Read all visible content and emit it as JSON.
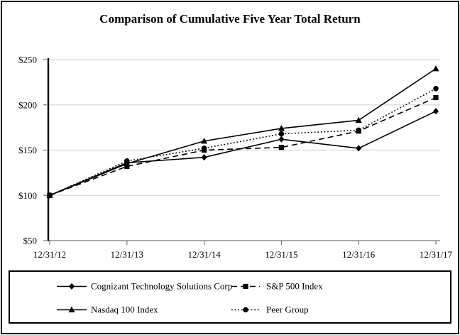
{
  "title": "Comparison of Cumulative Five Year Total Return",
  "chart_data": {
    "type": "line",
    "title": "Comparison of Cumulative Five Year Total Return",
    "x_labels": [
      "12/31/12",
      "12/31/13",
      "12/31/14",
      "12/31/15",
      "12/31/16",
      "12/31/17"
    ],
    "ylim": [
      50,
      250
    ],
    "y_ticks": [
      50,
      100,
      150,
      200,
      250
    ],
    "y_tick_labels": [
      "$50",
      "$100",
      "$150",
      "$200",
      "$250"
    ],
    "grid": true,
    "legend_position": "bottom-box",
    "colors": {
      "series": "#000000",
      "grid": "#d9d9d9",
      "axis_x": "#777777",
      "axis_y": "#000000",
      "background": "#ffffff"
    },
    "series": [
      {
        "name": "Cognizant Technology Solutions Corp",
        "line": "solid",
        "marker": "diamond",
        "values": [
          100,
          136,
          142,
          162,
          152,
          193
        ]
      },
      {
        "name": "S&P 500 Index",
        "line": "dashed",
        "marker": "square",
        "values": [
          100,
          132,
          150,
          153,
          171,
          208
        ]
      },
      {
        "name": "Nasdaq 100 Index",
        "line": "solid",
        "marker": "triangle",
        "values": [
          100,
          135,
          160,
          174,
          183,
          240
        ]
      },
      {
        "name": "Peer Group",
        "line": "dotted",
        "marker": "circle",
        "values": [
          100,
          138,
          152,
          168,
          172,
          218
        ]
      }
    ]
  }
}
